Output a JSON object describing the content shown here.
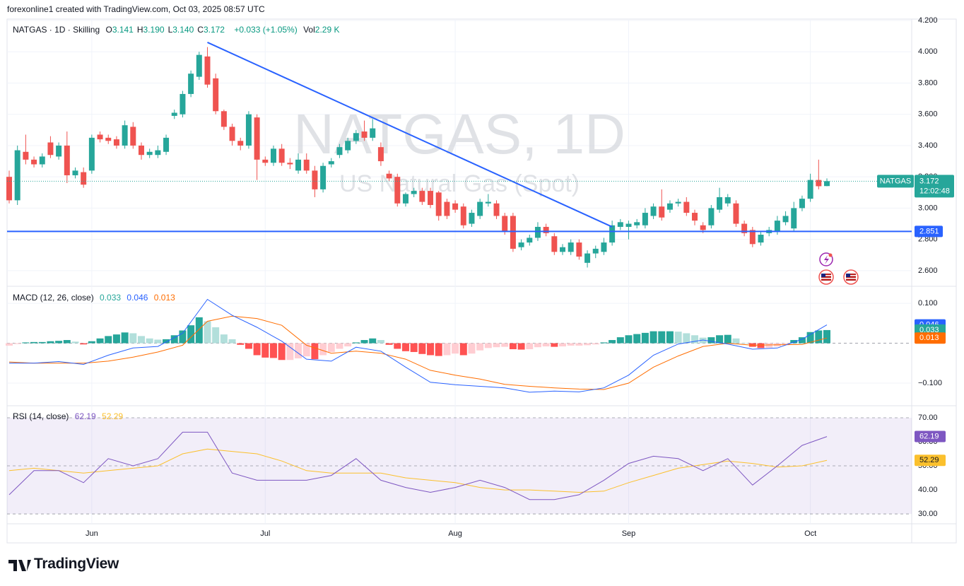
{
  "header": {
    "attribution": "forexonline1 created with TradingView.com, Oct 03, 2025 08:57 UTC",
    "brand": "TradingView"
  },
  "chart_data": [
    {
      "type": "candlestick",
      "symbol": "NATGAS · 1D · Skilling",
      "legend": {
        "items": [
          {
            "key": "O",
            "label": "3.141"
          },
          {
            "key": "H",
            "label": "3.190"
          },
          {
            "key": "L",
            "label": "3.140"
          },
          {
            "key": "C",
            "label": "3.172"
          }
        ],
        "change": "+0.033 (+1.05%)",
        "volume_key": "Vol",
        "volume": "2.29 K"
      },
      "watermark_title": "NATGAS, 1D",
      "watermark_subtitle": "US Natural Gas (Spot)",
      "categories": [
        null,
        null,
        null,
        null,
        null,
        null,
        null,
        null,
        null,
        null,
        "Jun",
        null,
        null,
        null,
        null,
        null,
        null,
        null,
        null,
        null,
        null,
        null,
        null,
        null,
        null,
        null,
        null,
        null,
        null,
        null,
        null,
        "Jul",
        null,
        null,
        null,
        null,
        null,
        null,
        null,
        null,
        null,
        null,
        null,
        null,
        null,
        null,
        null,
        null,
        null,
        null,
        null,
        null,
        null,
        null,
        "Aug",
        null,
        null,
        null,
        null,
        null,
        null,
        null,
        null,
        null,
        null,
        null,
        null,
        null,
        null,
        null,
        null,
        null,
        null,
        null,
        null,
        "Sep",
        null,
        null,
        null,
        null,
        null,
        null,
        null,
        null,
        null,
        null,
        null,
        null,
        null,
        null,
        null,
        null,
        null,
        null,
        null,
        null,
        null,
        "Oct",
        null,
        null
      ],
      "open": [
        3.2,
        3.05,
        3.36,
        3.31,
        3.28,
        3.42,
        3.33,
        3.4,
        3.21,
        3.23,
        3.24,
        3.47,
        3.45,
        3.44,
        3.4,
        3.52,
        3.4,
        3.34,
        3.34,
        3.36,
        3.59,
        3.6,
        3.73,
        3.84,
        3.97,
        3.83,
        3.62,
        3.52,
        3.43,
        3.4,
        3.58,
        3.31,
        3.29,
        3.38,
        3.29,
        3.24,
        3.31,
        3.24,
        3.12,
        3.28,
        3.34,
        3.37,
        3.43,
        3.49,
        3.45,
        3.39,
        3.22,
        3.2,
        3.03,
        3.09,
        3.11,
        3.11,
        3.1,
        3.04,
        3.03,
        3.01,
        2.9,
        2.95,
        3.03,
        3.03,
        2.95,
        2.95,
        2.75,
        2.78,
        2.81,
        2.88,
        2.82,
        2.72,
        2.72,
        2.78,
        2.65,
        2.71,
        2.72,
        2.78,
        2.88,
        2.88,
        2.89,
        2.89,
        2.95,
        3.01,
        2.99,
        3.03,
        3.04,
        2.97,
        2.89,
        2.89,
        2.99,
        3.03,
        3.03,
        2.9,
        2.86,
        2.78,
        2.84,
        2.85,
        2.91,
        2.87,
        3.0,
        3.06,
        3.18,
        3.141
      ],
      "high": [
        3.24,
        3.4,
        3.47,
        3.33,
        3.35,
        3.46,
        3.42,
        3.49,
        3.26,
        3.26,
        3.47,
        3.49,
        3.47,
        3.46,
        3.56,
        3.55,
        3.42,
        3.38,
        3.4,
        3.47,
        3.63,
        3.75,
        3.88,
        4.0,
        4.03,
        3.86,
        3.63,
        3.54,
        3.45,
        3.62,
        3.6,
        3.33,
        3.4,
        3.41,
        3.32,
        3.35,
        3.35,
        3.27,
        3.29,
        3.32,
        3.41,
        3.45,
        3.5,
        3.56,
        3.57,
        3.42,
        3.24,
        3.22,
        3.1,
        3.13,
        3.13,
        3.13,
        3.11,
        3.06,
        3.05,
        3.03,
        2.99,
        3.06,
        3.09,
        3.05,
        2.97,
        2.97,
        2.8,
        2.83,
        2.91,
        2.9,
        2.84,
        2.77,
        2.8,
        2.8,
        2.73,
        2.76,
        2.81,
        2.92,
        2.93,
        2.92,
        2.93,
        3.0,
        3.03,
        3.12,
        3.05,
        3.06,
        3.07,
        2.99,
        2.91,
        3.02,
        3.13,
        3.09,
        3.05,
        2.92,
        2.88,
        2.85,
        2.88,
        2.95,
        2.98,
        3.04,
        3.08,
        3.22,
        3.31,
        3.19
      ],
      "low": [
        3.03,
        3.02,
        3.28,
        3.26,
        3.26,
        3.32,
        3.31,
        3.16,
        3.19,
        3.13,
        3.22,
        3.42,
        3.41,
        3.38,
        3.38,
        3.38,
        3.31,
        3.32,
        3.32,
        3.34,
        3.57,
        3.58,
        3.71,
        3.82,
        3.77,
        3.6,
        3.5,
        3.4,
        3.37,
        3.38,
        3.18,
        3.27,
        3.27,
        3.27,
        3.25,
        3.22,
        3.22,
        3.07,
        3.1,
        3.26,
        3.32,
        3.35,
        3.41,
        3.43,
        3.43,
        3.27,
        3.17,
        3.01,
        3.01,
        3.07,
        3.02,
        3.0,
        2.92,
        2.93,
        2.97,
        2.87,
        2.88,
        2.93,
        3.01,
        2.93,
        2.83,
        2.72,
        2.73,
        2.76,
        2.79,
        2.82,
        2.7,
        2.7,
        2.7,
        2.67,
        2.62,
        2.68,
        2.7,
        2.76,
        2.86,
        2.8,
        2.87,
        2.87,
        2.93,
        2.92,
        2.97,
        3.01,
        2.95,
        2.89,
        2.84,
        2.87,
        2.97,
        3.01,
        2.88,
        2.82,
        2.75,
        2.76,
        2.82,
        2.83,
        2.89,
        2.85,
        2.98,
        3.04,
        3.12,
        3.14
      ],
      "close": [
        3.05,
        3.37,
        3.31,
        3.28,
        3.33,
        3.34,
        3.4,
        3.21,
        3.24,
        3.15,
        3.45,
        3.44,
        3.43,
        3.4,
        3.53,
        3.4,
        3.34,
        3.36,
        3.37,
        3.45,
        3.61,
        3.73,
        3.86,
        3.98,
        3.79,
        3.62,
        3.52,
        3.43,
        3.4,
        3.6,
        3.31,
        3.29,
        3.38,
        3.29,
        3.28,
        3.31,
        3.24,
        3.12,
        3.27,
        3.3,
        3.39,
        3.43,
        3.48,
        3.45,
        3.51,
        3.3,
        3.19,
        3.03,
        3.09,
        3.11,
        3.04,
        3.02,
        2.95,
        2.95,
        2.99,
        2.89,
        2.97,
        3.04,
        3.04,
        2.95,
        2.85,
        2.74,
        2.78,
        2.81,
        2.88,
        2.84,
        2.72,
        2.75,
        2.78,
        2.69,
        2.71,
        2.74,
        2.78,
        2.89,
        2.91,
        2.9,
        2.91,
        2.97,
        3.01,
        2.94,
        3.03,
        3.04,
        2.97,
        2.92,
        2.86,
        3.0,
        3.07,
        3.07,
        2.9,
        2.84,
        2.77,
        2.83,
        2.86,
        2.92,
        2.95,
        3.0,
        3.06,
        3.18,
        3.14,
        3.172
      ],
      "up_color": "#26a69a",
      "down_color": "#ef5350",
      "ylim": [
        2.5,
        4.2
      ],
      "yticks": [
        {
          "value": 2.6,
          "label": "2.600"
        },
        {
          "value": 2.8,
          "label": "2.800"
        },
        {
          "value": 3.0,
          "label": "3.000"
        },
        {
          "value": 3.2,
          "label": "3.200"
        },
        {
          "value": 3.4,
          "label": "3.400"
        },
        {
          "value": 3.6,
          "label": "3.600"
        },
        {
          "value": 3.8,
          "label": "3.800"
        },
        {
          "value": 4.0,
          "label": "4.000"
        },
        {
          "value": 4.2,
          "label": "4.200"
        }
      ],
      "grid": true,
      "horizontal_line": {
        "value": 2.851,
        "color": "#2962ff"
      },
      "trendline": {
        "start_bar": 24,
        "start_price": 4.06,
        "end_bar": 73,
        "end_price": 2.88,
        "color": "#2962ff"
      },
      "last_price_tag": "NATGAS",
      "countdown": "12:02:48"
    },
    {
      "type": "macd",
      "title": "MACD (12, 26, close)",
      "ylim": [
        -0.155,
        0.141
      ],
      "yticks": [
        {
          "value": 0.1,
          "label": "0.100"
        },
        {
          "value": -0.1,
          "label": "−0.100"
        }
      ],
      "histogram": {
        "colors": {
          "rising_up": "#26a69a",
          "falling_up": "#b2dfdb",
          "falling_down": "#ff5252",
          "rising_down": "#ffcdd2"
        },
        "values": [
          -0.006,
          -0.002,
          0.002,
          0.003,
          0.003,
          0.005,
          0.006,
          0.008,
          0.004,
          -0.003,
          0.005,
          0.012,
          0.018,
          0.022,
          0.027,
          0.025,
          0.018,
          0.012,
          0.009,
          0.01,
          0.02,
          0.032,
          0.045,
          0.065,
          0.055,
          0.04,
          0.022,
          0.01,
          -0.004,
          -0.014,
          -0.03,
          -0.036,
          -0.037,
          -0.042,
          -0.042,
          -0.038,
          -0.033,
          -0.04,
          -0.03,
          -0.022,
          -0.014,
          -0.008,
          0.002,
          0.008,
          0.012,
          0.008,
          -0.004,
          -0.014,
          -0.02,
          -0.022,
          -0.027,
          -0.03,
          -0.032,
          -0.03,
          -0.026,
          -0.03,
          -0.026,
          -0.018,
          -0.012,
          -0.01,
          -0.009,
          -0.015,
          -0.016,
          -0.015,
          -0.01,
          -0.008,
          -0.009,
          -0.008,
          -0.006,
          -0.006,
          -0.005,
          -0.003,
          0.002,
          0.008,
          0.015,
          0.02,
          0.023,
          0.026,
          0.03,
          0.03,
          0.03,
          0.029,
          0.025,
          0.02,
          0.014,
          0.015,
          0.02,
          0.021,
          0.012,
          0.0,
          -0.009,
          -0.012,
          -0.011,
          -0.008,
          -0.005,
          0.008,
          0.015,
          0.028,
          0.032,
          0.033
        ]
      },
      "macd_line": {
        "color": "#2962ff",
        "x": [
          0,
          3,
          6,
          9,
          12,
          15,
          18,
          21,
          24,
          27,
          30,
          33,
          36,
          39,
          42,
          45,
          48,
          51,
          54,
          57,
          60,
          63,
          66,
          69,
          72,
          75,
          78,
          81,
          84,
          87,
          90,
          93,
          96,
          99
        ],
        "values": [
          -0.05,
          -0.05,
          -0.046,
          -0.053,
          -0.03,
          -0.012,
          -0.008,
          0.025,
          0.11,
          0.07,
          0.04,
          0.005,
          -0.04,
          -0.045,
          -0.01,
          -0.02,
          -0.06,
          -0.098,
          -0.104,
          -0.108,
          -0.112,
          -0.123,
          -0.12,
          -0.122,
          -0.112,
          -0.08,
          -0.03,
          -0.002,
          0.008,
          -0.002,
          -0.015,
          -0.012,
          0.01,
          0.046
        ]
      },
      "signal_line": {
        "color": "#ff6d00",
        "x": [
          0,
          3,
          6,
          9,
          12,
          15,
          18,
          21,
          24,
          27,
          30,
          33,
          36,
          39,
          42,
          45,
          48,
          51,
          54,
          57,
          60,
          63,
          66,
          69,
          72,
          75,
          78,
          81,
          84,
          87,
          90,
          93,
          96,
          99
        ],
        "values": [
          -0.047,
          -0.05,
          -0.05,
          -0.05,
          -0.045,
          -0.035,
          -0.022,
          -0.005,
          0.055,
          0.068,
          0.062,
          0.045,
          -0.005,
          -0.025,
          -0.02,
          -0.025,
          -0.04,
          -0.068,
          -0.08,
          -0.09,
          -0.103,
          -0.108,
          -0.112,
          -0.115,
          -0.116,
          -0.1,
          -0.06,
          -0.032,
          -0.008,
          0.0,
          -0.005,
          -0.004,
          -0.003,
          0.013
        ]
      }
    },
    {
      "type": "rsi",
      "title": "RSI (14, close)",
      "ylim": [
        26.2,
        74.7
      ],
      "yticks": [
        {
          "value": 30,
          "label": "30.00"
        },
        {
          "value": 40,
          "label": "40.00"
        },
        {
          "value": 50,
          "label": "50.00"
        },
        {
          "value": 60,
          "label": "60.00"
        },
        {
          "value": 70,
          "label": "70.00"
        }
      ],
      "band_color": "#7e57c2",
      "rsi_line": {
        "color": "#7e57c2",
        "x": [
          0,
          3,
          6,
          9,
          12,
          15,
          18,
          21,
          24,
          27,
          30,
          33,
          36,
          39,
          42,
          45,
          48,
          51,
          54,
          57,
          60,
          63,
          66,
          69,
          72,
          75,
          78,
          81,
          84,
          87,
          90,
          93,
          96,
          99
        ],
        "values": [
          38,
          48,
          48,
          43,
          53,
          50,
          53,
          64,
          64,
          47,
          44,
          44,
          44,
          46,
          53,
          44,
          41,
          39,
          41,
          44,
          41,
          36,
          36,
          38,
          44,
          51,
          54,
          53,
          48,
          53,
          42,
          50,
          58.5,
          62.19
        ]
      },
      "ma_line": {
        "color": "#fbc02d",
        "x": [
          0,
          3,
          6,
          9,
          12,
          15,
          18,
          21,
          24,
          27,
          30,
          33,
          36,
          39,
          42,
          45,
          48,
          51,
          54,
          57,
          60,
          63,
          66,
          69,
          72,
          75,
          78,
          81,
          84,
          87,
          90,
          93,
          96,
          99
        ],
        "values": [
          48,
          49,
          48,
          47,
          48,
          49,
          50,
          55,
          57,
          56,
          55,
          52,
          48,
          47,
          47,
          47,
          45,
          44,
          43,
          41,
          40,
          40,
          39.5,
          39,
          39.5,
          43,
          46,
          49,
          50.5,
          52,
          51,
          49.5,
          50,
          52.29
        ]
      }
    }
  ]
}
